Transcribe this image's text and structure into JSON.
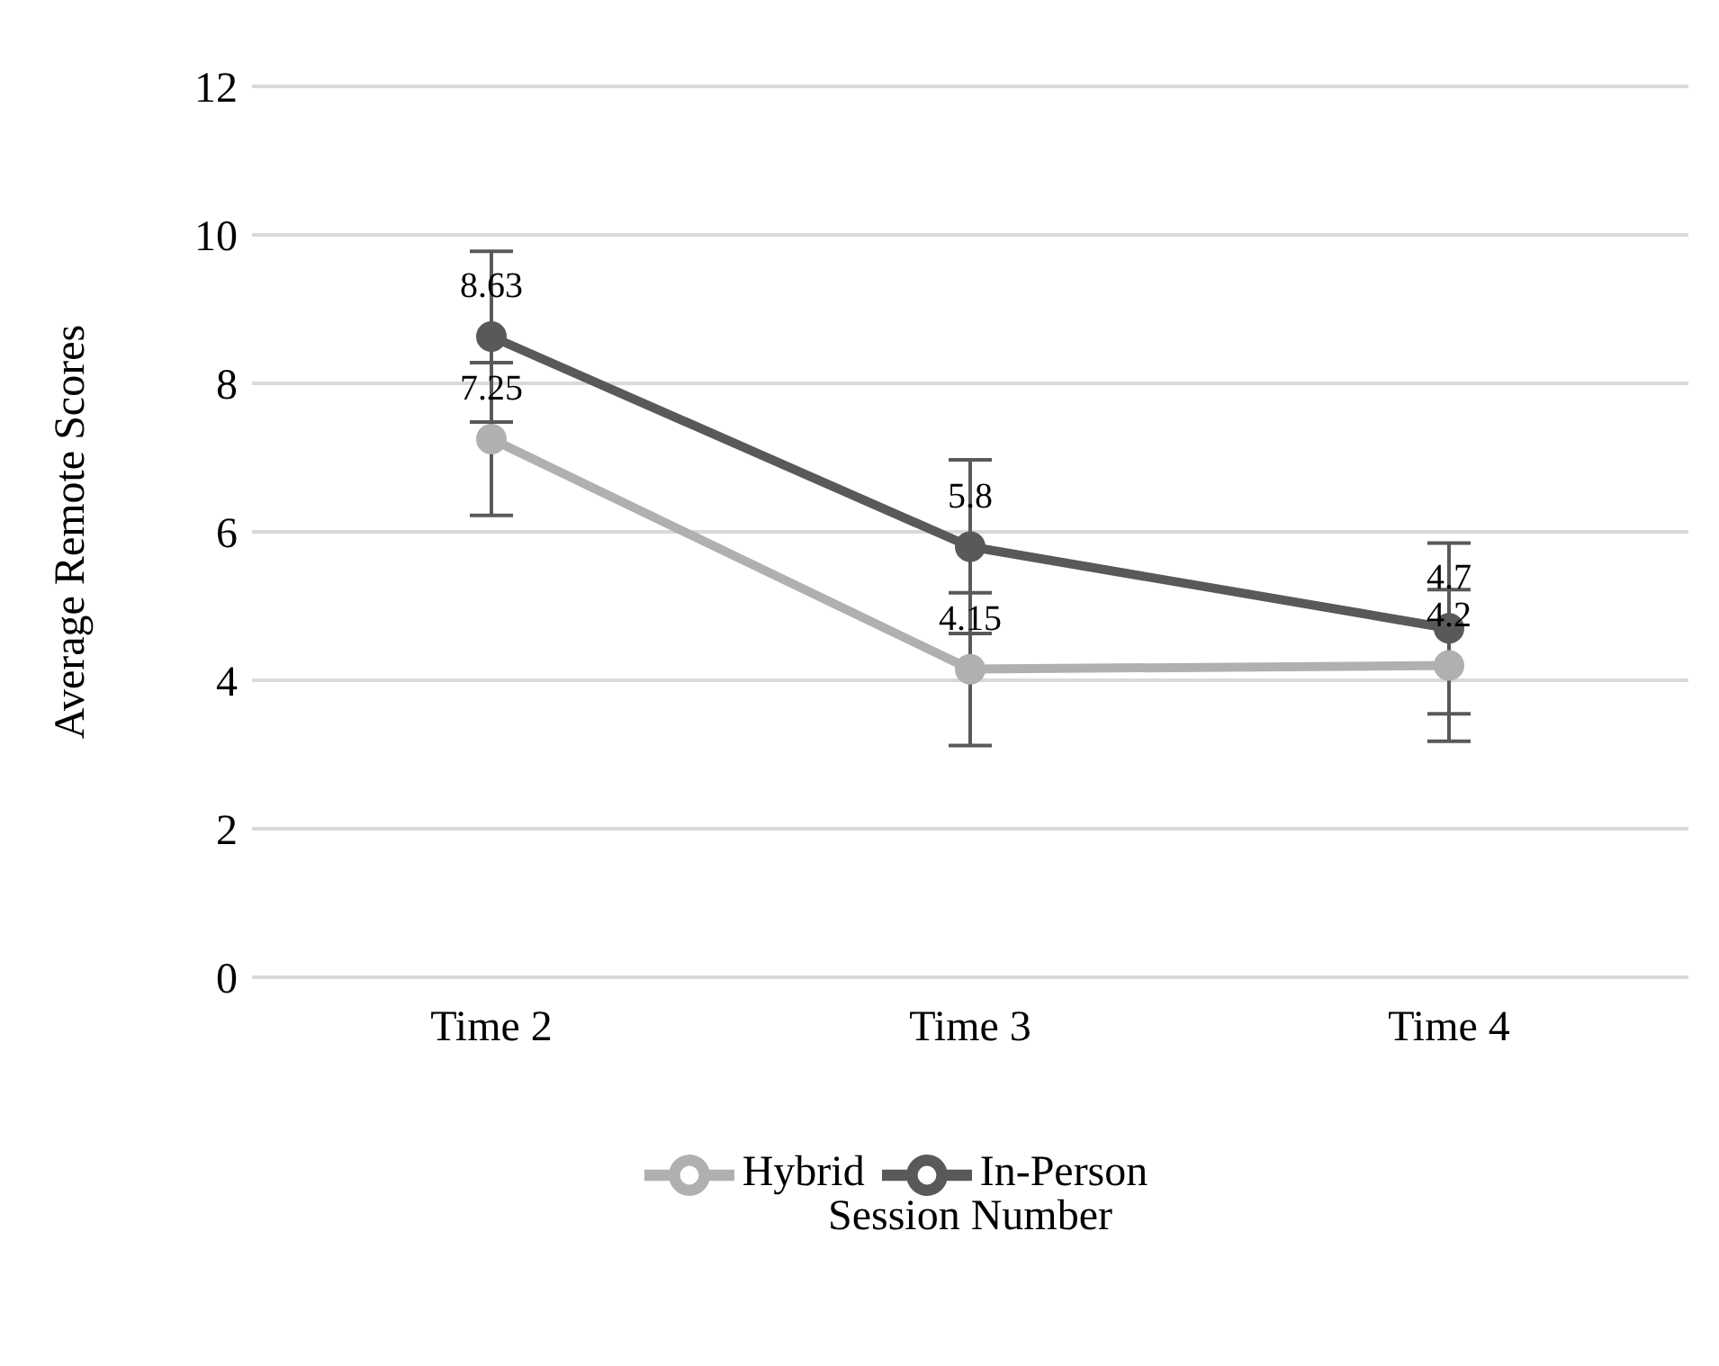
{
  "chart_data": {
    "type": "line",
    "xlabel": "Session Number",
    "ylabel": "Average Remote Scores",
    "categories": [
      "Time 2",
      "Time 3",
      "Time 4"
    ],
    "series": [
      {
        "name": "In-Person",
        "color": "#595959",
        "values": [
          8.63,
          5.8,
          4.7
        ],
        "errors": [
          1.15,
          1.17,
          1.15
        ]
      },
      {
        "name": "Hybrid",
        "color": "#b0b0b0",
        "values": [
          7.25,
          4.15,
          4.2
        ],
        "errors": [
          1.03,
          1.03,
          1.02
        ]
      }
    ],
    "ylim": [
      0,
      12
    ],
    "yticks": [
      0,
      2,
      4,
      6,
      8,
      10,
      12
    ],
    "grid": "y",
    "legend": "bottom",
    "marker": "circle",
    "line_style": "solid",
    "data_labels": true
  }
}
